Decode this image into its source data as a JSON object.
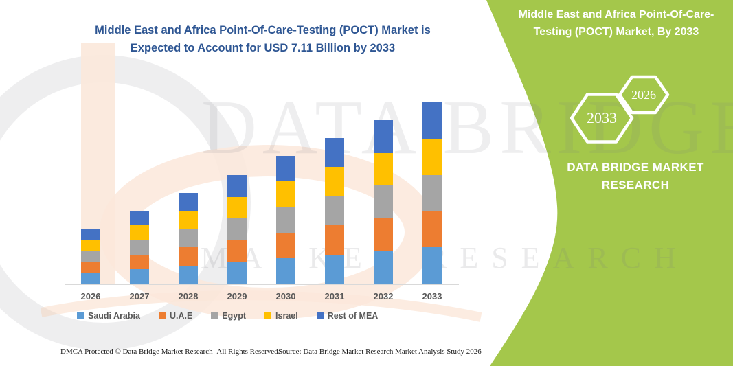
{
  "header": {
    "title_line1": "Middle East and Africa Point-Of-Care-Testing (POCT) Market is",
    "title_line2": "Expected to Account for USD 7.11 Billion by 2033",
    "title_color": "#2E5693"
  },
  "side_panel": {
    "bg_color": "#A4C74B",
    "title_line1": "Middle East and Africa Point-Of-Care-",
    "title_line2": "Testing (POCT) Market, By 2033",
    "hexagon_large_label": "2033",
    "hexagon_small_label": "2026",
    "brand_line1": "DATA BRIDGE MARKET",
    "brand_line2": "RESEARCH"
  },
  "watermark": {
    "line1": "DATA BRIDGE",
    "line2": "MARKET RESEARCH"
  },
  "chart_data": {
    "type": "bar",
    "stacked": true,
    "title": "Middle East and Africa Point-Of-Care-Testing (POCT) Market is Expected to Account for USD 7.11 Billion by 2033",
    "unit": "USD Billion",
    "categories": [
      "2026",
      "2027",
      "2028",
      "2029",
      "2030",
      "2031",
      "2032",
      "2033"
    ],
    "series": [
      {
        "name": "Saudi Arabia",
        "color": "#5B9BD5",
        "values": [
          0.43,
          0.57,
          0.71,
          0.85,
          1.0,
          1.14,
          1.28,
          1.42
        ]
      },
      {
        "name": "U.A.E",
        "color": "#ED7D31",
        "values": [
          0.43,
          0.57,
          0.71,
          0.85,
          1.0,
          1.14,
          1.28,
          1.42
        ]
      },
      {
        "name": "Egypt",
        "color": "#A5A5A5",
        "values": [
          0.43,
          0.57,
          0.71,
          0.85,
          1.0,
          1.14,
          1.28,
          1.42
        ]
      },
      {
        "name": "Israel",
        "color": "#FFC000",
        "values": [
          0.43,
          0.57,
          0.71,
          0.85,
          1.0,
          1.14,
          1.28,
          1.42
        ]
      },
      {
        "name": "Rest of MEA",
        "color": "#4472C4",
        "values": [
          0.43,
          0.57,
          0.71,
          0.85,
          1.0,
          1.14,
          1.28,
          1.42
        ]
      }
    ],
    "totals_estimated": [
      2.13,
      2.84,
      3.56,
      4.27,
      4.98,
      5.69,
      6.4,
      7.11
    ],
    "ylim": [
      0,
      7.5
    ],
    "grid": false,
    "y_axis_visible": false,
    "legend_position": "bottom",
    "axis_line_color": "#D9D9D9",
    "label_color": "#595959"
  },
  "footer": {
    "left": "DMCA Protected © Data Bridge Market Research-  All Rights Reserved.",
    "right": "Source: Data Bridge Market Research  Market Analysis Study 2026"
  }
}
